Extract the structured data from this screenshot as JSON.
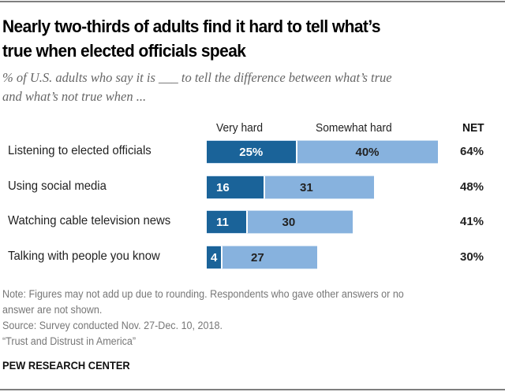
{
  "chart_data": {
    "type": "bar",
    "orientation": "horizontal",
    "stacked": true,
    "title": "Nearly two-thirds of adults find it hard to tell what’s true when elected officials speak",
    "subtitle": "% of U.S. adults who say it is ___ to tell the difference between what’s true and what’s not true when ...",
    "categories": [
      "Listening to elected officials",
      "Using social media",
      "Watching cable television news",
      "Talking with people you know"
    ],
    "series": [
      {
        "name": "Very hard",
        "color": "#1a6399",
        "values": [
          25,
          16,
          11,
          4
        ],
        "labels": [
          "25%",
          "16",
          "11",
          "4"
        ]
      },
      {
        "name": "Somewhat hard",
        "color": "#87b2de",
        "values": [
          40,
          31,
          30,
          27
        ],
        "labels": [
          "40%",
          "31",
          "30",
          "27"
        ]
      }
    ],
    "net": {
      "header": "NET",
      "values": [
        64,
        48,
        41,
        30
      ],
      "labels": [
        "64%",
        "48%",
        "41%",
        "30%"
      ]
    },
    "xlim": [
      0,
      100
    ],
    "grid": false,
    "legend": "column headers above bars"
  },
  "footer": {
    "note_line1": "Note: Figures may not add up due to rounding. Respondents who gave other answers or no",
    "note_line2": "answer are not shown.",
    "source": "Source: Survey conducted Nov. 27-Dec. 10, 2018.",
    "report": "“Trust and Distrust in America”",
    "brand": "PEW RESEARCH CENTER"
  }
}
